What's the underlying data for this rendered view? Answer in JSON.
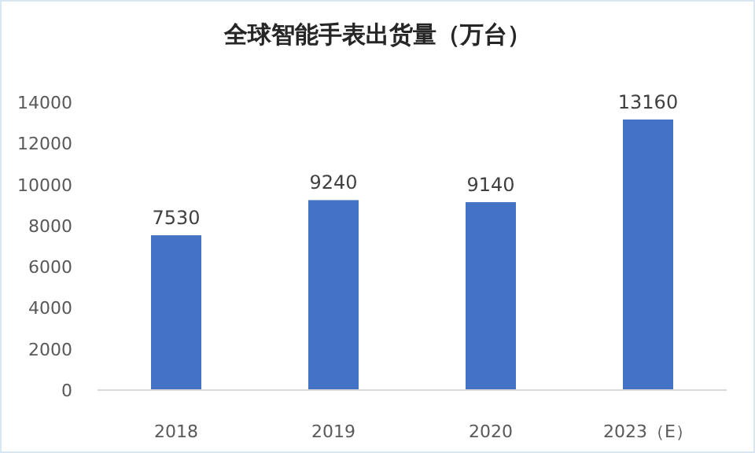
{
  "chart_data": {
    "type": "bar",
    "title": "全球智能手表出货量（万台）",
    "categories": [
      "2018",
      "2019",
      "2020",
      "2023（E）"
    ],
    "values": [
      7530,
      9240,
      9140,
      13160
    ],
    "color": "#4472c4",
    "ylim": [
      0,
      14000
    ],
    "yticks": [
      0,
      2000,
      4000,
      6000,
      8000,
      10000,
      12000,
      14000
    ],
    "grid": false,
    "data_labels": true
  }
}
